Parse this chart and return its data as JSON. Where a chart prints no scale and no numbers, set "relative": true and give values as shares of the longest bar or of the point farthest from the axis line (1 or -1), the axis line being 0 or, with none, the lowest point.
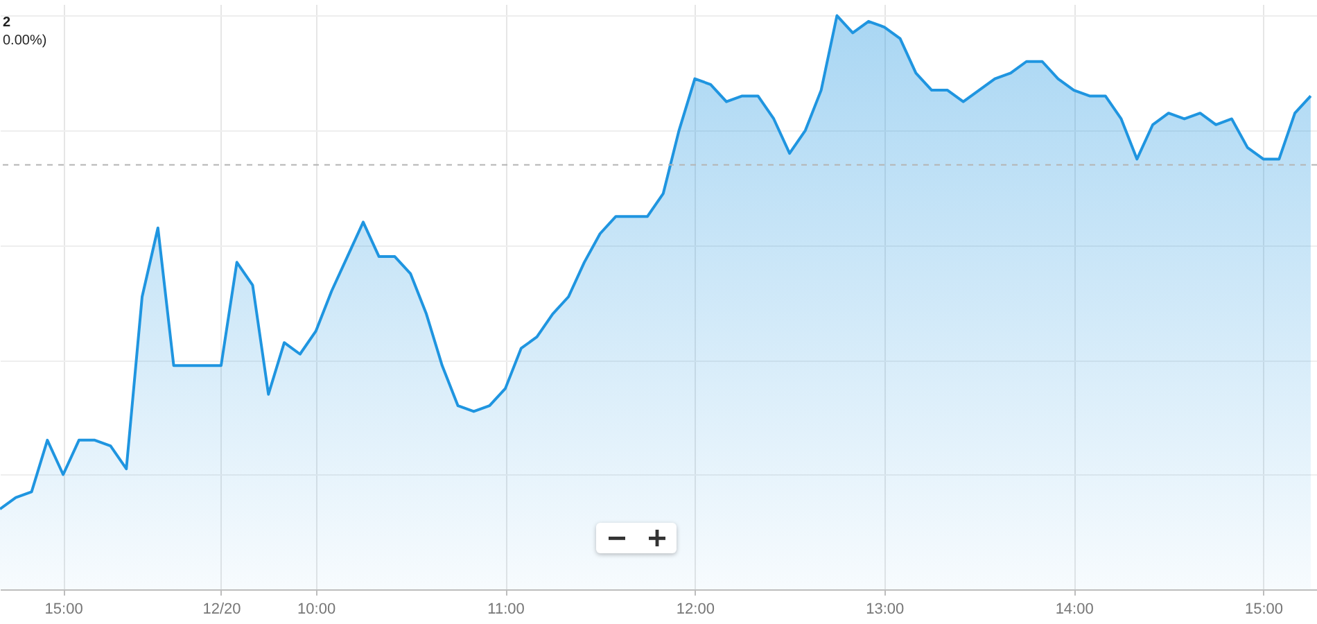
{
  "chart_data": {
    "type": "area",
    "relative": true,
    "grid": true,
    "annotations": [
      "2",
      "0.00%)"
    ],
    "categories": [
      null,
      null,
      null,
      null,
      "15:00",
      null,
      null,
      null,
      null,
      null,
      null,
      null,
      null,
      null,
      "12/20",
      null,
      null,
      null,
      null,
      null,
      "10:00",
      null,
      null,
      null,
      null,
      null,
      null,
      null,
      null,
      null,
      null,
      null,
      "11:00",
      null,
      null,
      null,
      null,
      null,
      null,
      null,
      null,
      null,
      null,
      null,
      "12:00",
      null,
      null,
      null,
      null,
      null,
      null,
      null,
      null,
      null,
      null,
      null,
      "13:00",
      null,
      null,
      null,
      null,
      null,
      null,
      null,
      null,
      null,
      null,
      null,
      "14:00",
      null,
      null,
      null,
      null,
      null,
      null,
      null,
      null,
      null,
      null,
      null,
      "15:00",
      null,
      null,
      null
    ],
    "series": [
      {
        "color": "#1f95e0",
        "values": [
          0.14,
          0.16,
          0.17,
          0.26,
          0.2,
          0.26,
          0.26,
          0.25,
          0.21,
          0.51,
          0.63,
          0.39,
          0.39,
          0.39,
          0.39,
          0.57,
          0.53,
          0.34,
          0.43,
          0.41,
          0.45,
          0.52,
          0.58,
          0.64,
          0.58,
          0.58,
          0.55,
          0.48,
          0.39,
          0.32,
          0.31,
          0.32,
          0.35,
          0.42,
          0.44,
          0.48,
          0.51,
          0.57,
          0.62,
          0.65,
          0.65,
          0.65,
          0.69,
          0.8,
          0.89,
          0.88,
          0.85,
          0.86,
          0.86,
          0.82,
          0.76,
          0.8,
          0.87,
          1,
          0.97,
          0.99,
          0.98,
          0.96,
          0.9,
          0.87,
          0.87,
          0.85,
          0.87,
          0.89,
          0.9,
          0.92,
          0.92,
          0.89,
          0.87,
          0.86,
          0.86,
          0.82,
          0.75,
          0.81,
          0.83,
          0.82,
          0.83,
          0.81,
          0.82,
          0.77,
          0.75,
          0.75,
          0.83,
          0.86
        ]
      }
    ],
    "ref_lines": [
      {
        "axis": "y",
        "value": 0.74,
        "color": "#b5b5b5",
        "line_style": "dashed"
      }
    ]
  }
}
